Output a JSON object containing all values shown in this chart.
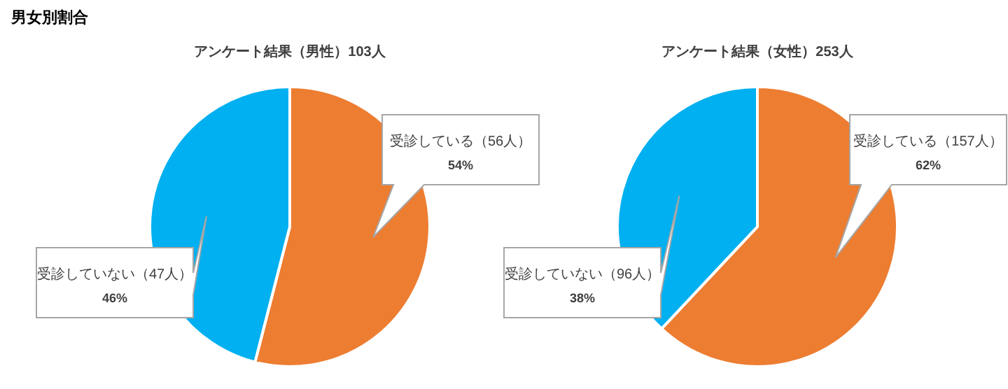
{
  "chart_data": [
    {
      "type": "pie",
      "title": "アンケート結果（男性）103人",
      "annotations": [
        "男女別割合"
      ],
      "categories": [
        "受診している（56人）",
        "受診していない（47人）"
      ],
      "values": [
        54,
        46
      ],
      "colors": [
        "#ed7d31",
        "#00b0f0"
      ],
      "value_labels": [
        "54%",
        "46%"
      ],
      "legend": false
    },
    {
      "type": "pie",
      "title": "アンケート結果（女性）253人",
      "categories": [
        "受診している（157人）",
        "受診していない（96人）"
      ],
      "values": [
        62,
        38
      ],
      "colors": [
        "#ed7d31",
        "#00b0f0"
      ],
      "value_labels": [
        "62%",
        "38%"
      ],
      "legend": false
    }
  ]
}
